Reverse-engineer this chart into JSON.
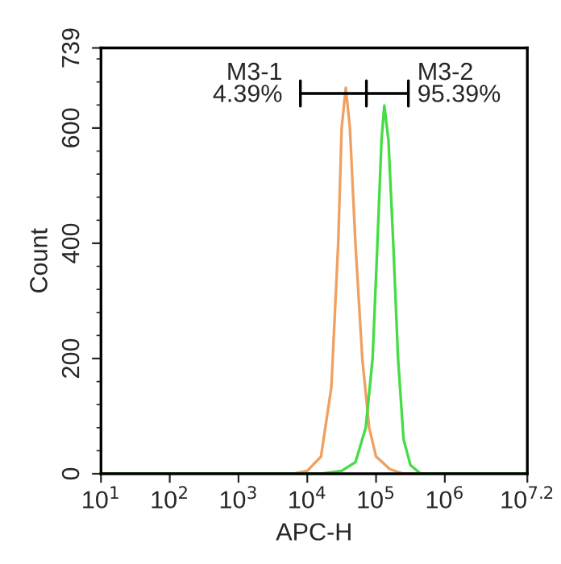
{
  "chart_data": {
    "type": "line",
    "xlabel": "APC-H",
    "ylabel": "Count",
    "log": "x",
    "xlim": [
      10,
      15848932
    ],
    "xticks": [
      {
        "value": 10,
        "label": "10$^{1}$"
      },
      {
        "value": 100,
        "label": "10$^{2}$"
      },
      {
        "value": 1000,
        "label": "10$^{3}$"
      },
      {
        "value": 10000,
        "label": "10$^{4}$"
      },
      {
        "value": 100000,
        "label": "10$^{5}$"
      },
      {
        "value": 1000000,
        "label": "10$^{6}$"
      },
      {
        "value": 15848932,
        "label": "10$^{7.2}$"
      }
    ],
    "ylim": [
      0,
      739
    ],
    "yticks": [
      0,
      200,
      400,
      600,
      739
    ],
    "grid": false,
    "legend": false,
    "marker": "none",
    "line_style": "solid",
    "series": [
      {
        "color": "#f0a060",
        "x": [
          10,
          6310,
          10000,
          15849,
          22387,
          28184,
          31623,
          36308,
          41687,
          50119,
          63096,
          79433,
          100000,
          158489,
          251189,
          15848932
        ],
        "values": [
          0,
          0,
          5,
          30,
          150,
          400,
          600,
          670,
          600,
          400,
          200,
          80,
          30,
          8,
          0,
          0
        ]
      },
      {
        "color": "#44dd44",
        "x": [
          10,
          15849,
          31623,
          50119,
          70795,
          89125,
          104713,
          120226,
          131826,
          151356,
          177828,
          208930,
          251189,
          316228,
          446684,
          15848932
        ],
        "values": [
          0,
          0,
          5,
          20,
          80,
          200,
          400,
          580,
          639,
          580,
          400,
          200,
          60,
          15,
          0,
          0
        ]
      },
      {
        "color": "#000000",
        "x": [
          7943,
          72444,
          295121
        ],
        "values": [
          660,
          660,
          660
        ]
      }
    ],
    "annotations": [
      {
        "text": "M3-1\n4.39%",
        "x": 7943,
        "y": 660
      },
      {
        "text": "M3-2\n95.39%",
        "x": 295121,
        "y": 660
      }
    ]
  }
}
